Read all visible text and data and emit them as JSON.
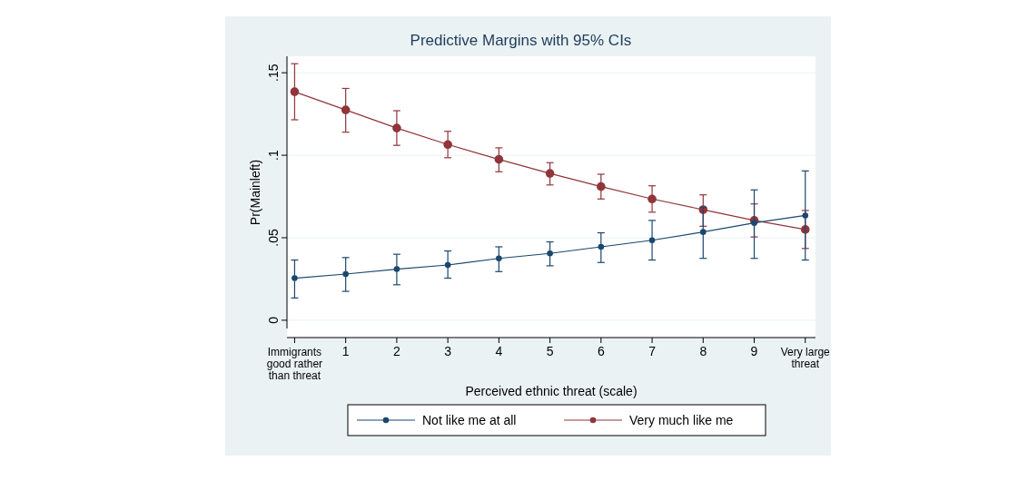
{
  "chart_data": {
    "type": "line",
    "title": "Predictive Margins with 95% CIs",
    "xlabel": "Perceived ethnic threat (scale)",
    "ylabel": "Pr(Mainleft)",
    "x": [
      0,
      1,
      2,
      3,
      4,
      5,
      6,
      7,
      8,
      9,
      10
    ],
    "xlim": [
      -0.15,
      10.2
    ],
    "xticks": [
      {
        "value": 0,
        "label": "Immigrants good rather than threat"
      },
      1,
      2,
      3,
      4,
      5,
      6,
      7,
      8,
      9,
      {
        "value": 10,
        "label": "Very large threat"
      }
    ],
    "ylim": [
      -0.005,
      0.16
    ],
    "yticks": [
      {
        "value": 0,
        "label": "0"
      },
      {
        "value": 0.05,
        "label": ".05"
      },
      {
        "value": 0.1,
        "label": ".1"
      },
      {
        "value": 0.15,
        "label": ".15"
      }
    ],
    "grid": "y",
    "legend": "bottom",
    "marker": "circle",
    "line_style": "solid",
    "series": [
      {
        "name": "Not like me at all",
        "color": "#1a476f",
        "values": [
          0.0255,
          0.028,
          0.031,
          0.0335,
          0.0375,
          0.0405,
          0.0445,
          0.0485,
          0.0535,
          0.059,
          0.0635
        ],
        "errors": [
          [
            0.0135,
            0.0365
          ],
          [
            0.0175,
            0.038
          ],
          [
            0.0215,
            0.04
          ],
          [
            0.0255,
            0.042
          ],
          [
            0.0295,
            0.0445
          ],
          [
            0.033,
            0.0475
          ],
          [
            0.035,
            0.053
          ],
          [
            0.0365,
            0.0605
          ],
          [
            0.0375,
            0.0685
          ],
          [
            0.0375,
            0.079
          ],
          [
            0.0365,
            0.0905
          ]
        ]
      },
      {
        "name": "Very much like me",
        "color": "#90353b",
        "values": [
          0.1385,
          0.1275,
          0.1165,
          0.1065,
          0.0975,
          0.089,
          0.081,
          0.0735,
          0.067,
          0.0605,
          0.055
        ],
        "errors": [
          [
            0.1215,
            0.1555
          ],
          [
            0.114,
            0.1405
          ],
          [
            0.106,
            0.127
          ],
          [
            0.0985,
            0.1145
          ],
          [
            0.09,
            0.1045
          ],
          [
            0.082,
            0.0955
          ],
          [
            0.0735,
            0.0885
          ],
          [
            0.0655,
            0.0815
          ],
          [
            0.057,
            0.076
          ],
          [
            0.0505,
            0.0705
          ],
          [
            0.0435,
            0.0665
          ]
        ]
      }
    ]
  }
}
